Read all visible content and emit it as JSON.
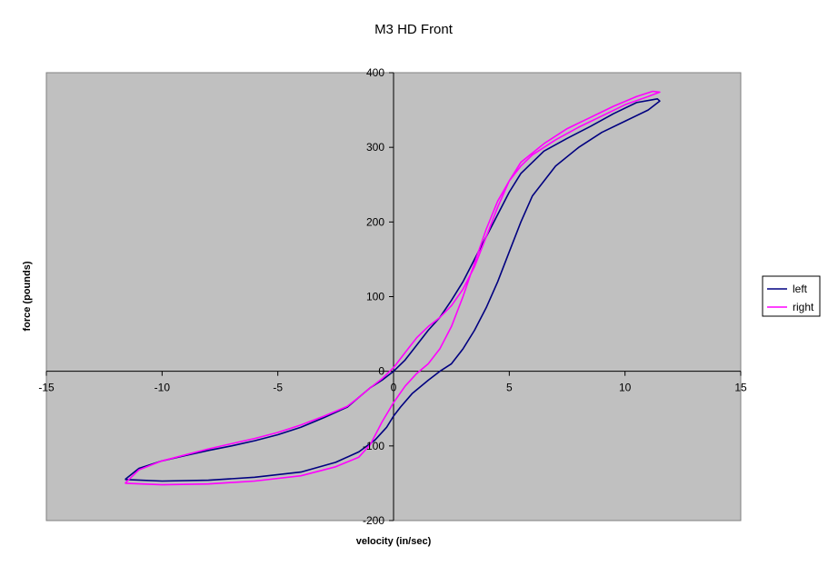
{
  "chart_data": {
    "type": "scatter",
    "title": "M3 HD Front",
    "xlabel": "velocity (in/sec)",
    "ylabel": "force (pounds)",
    "xlim": [
      -15,
      15
    ],
    "ylim": [
      -200,
      400
    ],
    "x_ticks": [
      -15,
      -10,
      -5,
      0,
      5,
      10,
      15
    ],
    "y_ticks": [
      -200,
      -100,
      0,
      100,
      200,
      300,
      400
    ],
    "x_tick_labels": [
      "-15",
      "-10",
      "-5",
      "0",
      "5",
      "10",
      "15"
    ],
    "y_tick_labels": [
      "-200",
      "-100",
      "0",
      "100",
      "200",
      "300",
      "400"
    ],
    "plot_background": "#c0c0c0",
    "grid": false,
    "legend_position": "right",
    "series": [
      {
        "name": "left",
        "color": "#000080",
        "x": [
          -11.6,
          -10.0,
          -8.0,
          -6.0,
          -4.0,
          -2.5,
          -1.5,
          -0.8,
          -0.3,
          0.0,
          0.3,
          0.8,
          1.5,
          2.0,
          2.5,
          3.0,
          3.5,
          4.0,
          4.5,
          5.0,
          5.5,
          6.0,
          7.0,
          8.0,
          9.0,
          10.0,
          11.0,
          11.5,
          11.4,
          10.5,
          9.5,
          8.5,
          7.5,
          6.5,
          5.5,
          5.0,
          4.5,
          4.0,
          3.5,
          3.0,
          2.5,
          2.0,
          1.5,
          1.0,
          0.5,
          0.0,
          -0.5,
          -1.0,
          -1.5,
          -2.0,
          -3.0,
          -4.0,
          -5.0,
          -6.0,
          -7.0,
          -8.0,
          -9.0,
          -10.0,
          -11.0,
          -11.6
        ],
        "y": [
          -145,
          -147,
          -146,
          -142,
          -135,
          -122,
          -108,
          -92,
          -75,
          -60,
          -48,
          -30,
          -12,
          0,
          10,
          30,
          55,
          85,
          120,
          160,
          200,
          235,
          275,
          300,
          320,
          335,
          350,
          362,
          365,
          360,
          345,
          328,
          312,
          295,
          265,
          240,
          210,
          180,
          150,
          120,
          95,
          72,
          55,
          35,
          15,
          0,
          -12,
          -22,
          -35,
          -48,
          -62,
          -75,
          -85,
          -93,
          -100,
          -106,
          -113,
          -120,
          -130,
          -145
        ]
      },
      {
        "name": "right",
        "color": "#ff00ff",
        "x": [
          -11.6,
          -10.0,
          -8.0,
          -6.0,
          -4.0,
          -2.5,
          -1.5,
          -1.0,
          -0.5,
          0.0,
          0.5,
          1.0,
          1.5,
          2.0,
          2.5,
          3.0,
          3.5,
          4.0,
          4.5,
          5.0,
          5.5,
          6.0,
          7.0,
          8.0,
          9.0,
          10.0,
          11.0,
          11.5,
          11.2,
          10.5,
          9.5,
          8.5,
          7.5,
          6.5,
          5.5,
          5.0,
          4.5,
          4.0,
          3.5,
          3.0,
          2.5,
          2.0,
          1.5,
          1.0,
          0.5,
          0.0,
          -0.5,
          -1.0,
          -1.5,
          -2.0,
          -3.0,
          -4.0,
          -5.0,
          -6.0,
          -7.0,
          -8.0,
          -9.0,
          -10.0,
          -11.0,
          -11.6
        ],
        "y": [
          -150,
          -152,
          -151,
          -147,
          -140,
          -128,
          -115,
          -98,
          -68,
          -42,
          -20,
          -3,
          10,
          30,
          60,
          100,
          145,
          190,
          228,
          255,
          275,
          290,
          310,
          327,
          342,
          357,
          368,
          374,
          375,
          368,
          355,
          340,
          325,
          305,
          280,
          255,
          220,
          180,
          140,
          110,
          88,
          72,
          60,
          45,
          25,
          5,
          -10,
          -22,
          -35,
          -47,
          -60,
          -72,
          -82,
          -90,
          -97,
          -104,
          -112,
          -120,
          -132,
          -150
        ]
      }
    ]
  }
}
